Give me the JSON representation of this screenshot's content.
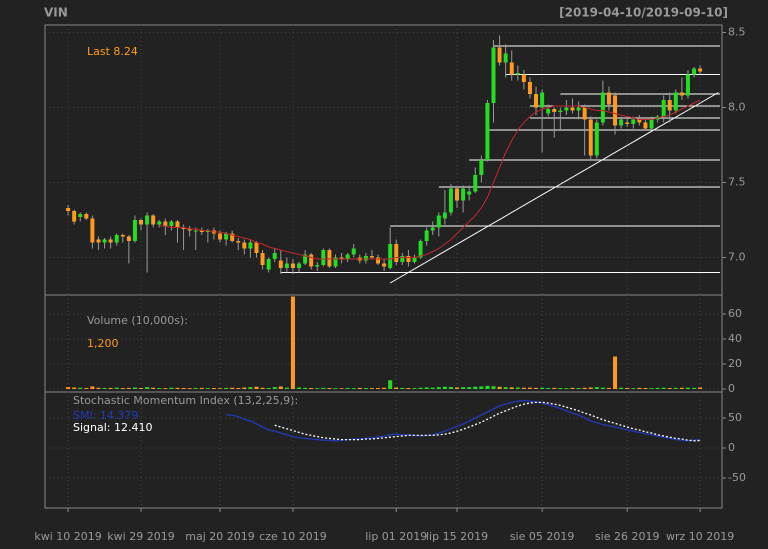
{
  "chart_data": {
    "type": "candlestick",
    "title": "VIN",
    "subtitle": "[2019-04-10/2019-09-10]",
    "last_label": "Last 8.24",
    "colors": {
      "up": "#22dd22",
      "down": "#ff9a1f",
      "wick": "#999999"
    },
    "ohlc": [
      [
        7.33,
        7.35,
        7.28,
        7.31
      ],
      [
        7.31,
        7.32,
        7.22,
        7.24
      ],
      [
        7.27,
        7.3,
        7.24,
        7.29
      ],
      [
        7.29,
        7.3,
        7.25,
        7.26
      ],
      [
        7.26,
        7.28,
        7.06,
        7.1
      ],
      [
        7.12,
        7.14,
        7.05,
        7.1
      ],
      [
        7.1,
        7.13,
        7.06,
        7.12
      ],
      [
        7.12,
        7.14,
        7.06,
        7.1
      ],
      [
        7.1,
        7.16,
        7.08,
        7.15
      ],
      [
        7.15,
        7.16,
        7.1,
        7.14
      ],
      [
        7.14,
        7.15,
        6.96,
        7.11
      ],
      [
        7.11,
        7.28,
        7.1,
        7.25
      ],
      [
        7.25,
        7.26,
        7.18,
        7.22
      ],
      [
        7.22,
        7.3,
        6.9,
        7.28
      ],
      [
        7.28,
        7.29,
        7.2,
        7.22
      ],
      [
        7.22,
        7.25,
        7.2,
        7.24
      ],
      [
        7.24,
        7.26,
        7.15,
        7.21
      ],
      [
        7.21,
        7.25,
        7.18,
        7.24
      ],
      [
        7.24,
        7.25,
        7.1,
        7.2
      ],
      [
        7.2,
        7.22,
        7.05,
        7.19
      ],
      [
        7.19,
        7.21,
        7.14,
        7.18
      ],
      [
        7.18,
        7.2,
        7.05,
        7.18
      ],
      [
        7.18,
        7.2,
        7.15,
        7.17
      ],
      [
        7.17,
        7.19,
        7.1,
        7.18
      ],
      [
        7.18,
        7.2,
        7.12,
        7.16
      ],
      [
        7.16,
        7.18,
        7.1,
        7.12
      ],
      [
        7.12,
        7.17,
        7.08,
        7.16
      ],
      [
        7.16,
        7.18,
        7.1,
        7.11
      ],
      [
        7.11,
        7.13,
        7.05,
        7.1
      ],
      [
        7.1,
        7.12,
        7.02,
        7.06
      ],
      [
        7.06,
        7.12,
        7.0,
        7.1
      ],
      [
        7.1,
        7.11,
        7.0,
        7.03
      ],
      [
        7.03,
        7.05,
        6.92,
        6.95
      ],
      [
        6.92,
        7.0,
        6.9,
        6.99
      ],
      [
        6.99,
        7.06,
        6.97,
        7.03
      ],
      [
        6.98,
        7.05,
        6.89,
        6.93
      ],
      [
        6.93,
        7.0,
        6.9,
        6.96
      ],
      [
        6.96,
        6.99,
        6.89,
        6.93
      ],
      [
        6.93,
        6.97,
        6.9,
        6.96
      ],
      [
        6.96,
        7.05,
        6.95,
        7.02
      ],
      [
        7.02,
        7.03,
        6.92,
        6.94
      ],
      [
        6.94,
        6.97,
        6.91,
        6.95
      ],
      [
        6.95,
        7.06,
        6.94,
        7.05
      ],
      [
        7.05,
        7.06,
        6.93,
        6.94
      ],
      [
        6.94,
        7.02,
        6.93,
        7.0
      ],
      [
        7.0,
        7.03,
        6.96,
        6.99
      ],
      [
        6.99,
        7.03,
        6.97,
        7.02
      ],
      [
        7.02,
        7.09,
        7.0,
        7.06
      ],
      [
        7.0,
        7.02,
        6.96,
        6.98
      ],
      [
        6.98,
        7.03,
        6.96,
        7.01
      ],
      [
        7.01,
        7.05,
        6.99,
        7.0
      ],
      [
        7.0,
        7.02,
        6.95,
        6.96
      ],
      [
        6.96,
        6.99,
        6.91,
        6.94
      ],
      [
        6.93,
        7.2,
        6.92,
        7.09
      ],
      [
        7.09,
        7.12,
        6.95,
        6.97
      ],
      [
        6.97,
        7.03,
        6.95,
        7.01
      ],
      [
        7.01,
        7.05,
        6.94,
        6.97
      ],
      [
        6.97,
        7.02,
        6.96,
        7.0
      ],
      [
        7.0,
        7.12,
        6.99,
        7.11
      ],
      [
        7.11,
        7.2,
        7.08,
        7.18
      ],
      [
        7.18,
        7.24,
        7.15,
        7.2
      ],
      [
        7.2,
        7.3,
        7.14,
        7.28
      ],
      [
        7.26,
        7.45,
        7.22,
        7.3
      ],
      [
        7.3,
        7.49,
        7.28,
        7.46
      ],
      [
        7.46,
        7.47,
        7.33,
        7.38
      ],
      [
        7.38,
        7.48,
        7.3,
        7.46
      ],
      [
        7.42,
        7.48,
        7.38,
        7.44
      ],
      [
        7.44,
        7.6,
        7.43,
        7.55
      ],
      [
        7.55,
        7.68,
        7.5,
        7.65
      ],
      [
        7.65,
        8.05,
        7.64,
        8.03
      ],
      [
        8.03,
        8.45,
        7.9,
        8.4
      ],
      [
        8.4,
        8.48,
        8.28,
        8.3
      ],
      [
        8.3,
        8.42,
        8.2,
        8.36
      ],
      [
        8.3,
        8.38,
        8.18,
        8.22
      ],
      [
        8.22,
        8.28,
        8.18,
        8.23
      ],
      [
        8.22,
        8.25,
        8.12,
        8.17
      ],
      [
        8.17,
        8.2,
        8.06,
        8.09
      ],
      [
        8.09,
        8.14,
        7.95,
        8.0
      ],
      [
        8.0,
        8.12,
        7.7,
        8.1
      ],
      [
        7.96,
        8.02,
        7.94,
        7.99
      ],
      [
        7.99,
        8.0,
        7.8,
        7.97
      ],
      [
        7.97,
        8.0,
        7.85,
        7.98
      ],
      [
        7.98,
        8.05,
        7.95,
        8.0
      ],
      [
        8.0,
        8.06,
        7.96,
        7.98
      ],
      [
        7.98,
        8.04,
        7.92,
        8.0
      ],
      [
        8.0,
        8.02,
        7.68,
        7.92
      ],
      [
        7.92,
        7.94,
        7.65,
        7.68
      ],
      [
        7.68,
        7.92,
        7.66,
        7.9
      ],
      [
        7.9,
        8.18,
        7.88,
        8.1
      ],
      [
        8.1,
        8.14,
        7.98,
        8.02
      ],
      [
        8.08,
        8.1,
        7.82,
        7.88
      ],
      [
        7.88,
        7.94,
        7.86,
        7.92
      ],
      [
        7.9,
        7.93,
        7.87,
        7.89
      ],
      [
        7.89,
        7.94,
        7.86,
        7.92
      ],
      [
        7.92,
        7.95,
        7.88,
        7.9
      ],
      [
        7.9,
        7.92,
        7.85,
        7.86
      ],
      [
        7.86,
        7.94,
        7.85,
        7.92
      ],
      [
        7.92,
        7.95,
        7.9,
        7.94
      ],
      [
        7.94,
        8.08,
        7.9,
        8.05
      ],
      [
        8.05,
        8.1,
        7.9,
        7.98
      ],
      [
        7.98,
        8.12,
        7.96,
        8.1
      ],
      [
        8.1,
        8.2,
        8.05,
        8.08
      ],
      [
        8.08,
        8.25,
        8.06,
        8.22
      ],
      [
        8.22,
        8.27,
        8.2,
        8.26
      ],
      [
        8.26,
        8.28,
        8.22,
        8.24
      ]
    ],
    "ma": {
      "color": "#c0282d",
      "values": [
        null,
        null,
        null,
        null,
        null,
        null,
        null,
        null,
        null,
        null,
        null,
        null,
        null,
        null,
        null,
        7.21,
        7.21,
        7.2,
        7.2,
        7.2,
        7.19,
        7.19,
        7.18,
        7.18,
        7.17,
        7.17,
        7.16,
        7.15,
        7.14,
        7.13,
        7.12,
        7.1,
        7.09,
        7.07,
        7.06,
        7.05,
        7.04,
        7.03,
        7.02,
        7.01,
        7.0,
        6.99,
        6.99,
        6.99,
        6.99,
        6.99,
        6.99,
        6.99,
        6.99,
        6.99,
        6.99,
        6.99,
        6.99,
        6.99,
        7.0,
        7.0,
        7.0,
        7.0,
        7.01,
        7.02,
        7.04,
        7.06,
        7.09,
        7.12,
        7.16,
        7.2,
        7.24,
        7.28,
        7.33,
        7.4,
        7.5,
        7.6,
        7.7,
        7.78,
        7.85,
        7.9,
        7.94,
        7.97,
        7.99,
        8.0,
        8.01,
        8.01,
        8.01,
        8.01,
        8.01,
        8.0,
        7.99,
        7.98,
        7.98,
        7.97,
        7.96,
        7.95,
        7.94,
        7.93,
        7.92,
        7.92,
        7.92,
        7.93,
        7.94,
        7.95,
        7.97,
        7.99,
        8.01,
        8.03,
        8.05
      ]
    },
    "hlines": [
      {
        "value": 8.41,
        "start": 70
      },
      {
        "value": 8.22,
        "start": 72
      },
      {
        "value": 8.09,
        "start": 81
      },
      {
        "value": 8.01,
        "start": 76
      },
      {
        "value": 7.93,
        "start": 76
      },
      {
        "value": 7.85,
        "start": 69
      },
      {
        "value": 7.65,
        "start": 66
      },
      {
        "value": 7.47,
        "start": 61
      },
      {
        "value": 7.21,
        "start": 53
      },
      {
        "value": 6.9,
        "start": 35
      }
    ],
    "trendline": {
      "x": [
        53,
        107
      ],
      "y": [
        6.83,
        8.1
      ]
    },
    "line_color": "#ffffff",
    "xlim": [
      -3.8,
      107.6
    ],
    "xticks": [
      {
        "value": 0,
        "label": "kwi 10 2019"
      },
      {
        "value": 12,
        "label": "kwi 29 2019"
      },
      {
        "value": 25,
        "label": "maj 20 2019"
      },
      {
        "value": 37,
        "label": "cze 10 2019"
      },
      {
        "value": 54,
        "label": "lip 01 2019"
      },
      {
        "value": 64,
        "label": "lip 15 2019"
      },
      {
        "value": 78,
        "label": "sie 05 2019"
      },
      {
        "value": 92,
        "label": "sie 26 2019"
      },
      {
        "value": 104,
        "label": "wrz 10 2019"
      }
    ],
    "ylim": [
      6.75,
      8.55
    ],
    "yticks": [
      {
        "value": 7,
        "label": "7.0"
      },
      7.5,
      {
        "value": 8,
        "label": "8.0"
      },
      8.5
    ],
    "grid": true,
    "volume": {
      "title": "Volume (10,000s):",
      "last": "1,200",
      "values": [
        1.5,
        1.2,
        1.0,
        0.8,
        2.0,
        1.0,
        0.8,
        0.9,
        1.1,
        0.7,
        0.9,
        1.2,
        0.8,
        1.5,
        1.0,
        0.8,
        0.7,
        1.0,
        0.9,
        0.8,
        0.7,
        0.8,
        0.9,
        0.7,
        0.8,
        0.6,
        0.9,
        1.0,
        0.8,
        1.2,
        1.5,
        1.8,
        1.0,
        0.8,
        1.5,
        2.0,
        1.0,
        74,
        1.2,
        0.9,
        0.8,
        0.7,
        0.9,
        0.8,
        0.7,
        0.6,
        0.8,
        0.7,
        0.9,
        0.8,
        0.7,
        0.8,
        1.0,
        7,
        1.2,
        0.9,
        0.8,
        0.7,
        1.0,
        1.3,
        1.1,
        1.5,
        1.8,
        1.6,
        1.2,
        1.4,
        1.5,
        1.8,
        2.0,
        2.5,
        2.2,
        1.8,
        1.5,
        1.3,
        1.2,
        1.0,
        1.1,
        0.9,
        1.0,
        0.8,
        0.9,
        0.8,
        0.7,
        0.9,
        0.8,
        1.0,
        1.2,
        1.5,
        1.1,
        0.9,
        26,
        1.0,
        0.8,
        0.7,
        0.9,
        0.8,
        0.7,
        0.9,
        1.0,
        0.8,
        0.9,
        1.0,
        1.1,
        0.9,
        1.2
      ],
      "ylim": [
        -2.4,
        75.2
      ],
      "yticks": [
        0,
        20,
        40,
        60
      ]
    },
    "smi": {
      "title": "Stochastic Momentum Index (13,2,25,9):",
      "series": [
        {
          "name": "SMI: 14.379",
          "color": "#2238b8",
          "dash": false,
          "values": [
            null,
            null,
            null,
            null,
            null,
            null,
            null,
            null,
            null,
            null,
            null,
            null,
            null,
            null,
            null,
            null,
            null,
            null,
            null,
            null,
            null,
            null,
            null,
            null,
            null,
            null,
            55,
            55,
            52,
            48,
            45,
            40,
            35,
            30,
            28,
            25,
            22,
            19,
            17,
            16,
            15,
            14,
            13,
            13,
            12,
            13,
            14,
            15,
            15,
            16,
            17,
            18,
            20,
            22,
            23,
            22,
            22,
            21,
            20,
            21,
            22,
            25,
            28,
            32,
            36,
            40,
            45,
            50,
            55,
            60,
            65,
            70,
            73,
            76,
            78,
            79,
            78,
            77,
            75,
            72,
            69,
            66,
            62,
            58,
            55,
            50,
            45,
            42,
            39,
            37,
            35,
            33,
            30,
            28,
            26,
            24,
            22,
            20,
            18,
            16,
            14,
            13,
            12,
            13,
            14.379
          ]
        },
        {
          "name": "Signal: 12.410",
          "color": "#ffffff",
          "dash": true,
          "values": [
            null,
            null,
            null,
            null,
            null,
            null,
            null,
            null,
            null,
            null,
            null,
            null,
            null,
            null,
            null,
            null,
            null,
            null,
            null,
            null,
            null,
            null,
            null,
            null,
            null,
            null,
            null,
            null,
            null,
            null,
            null,
            null,
            null,
            null,
            38,
            35,
            32,
            29,
            26,
            23,
            21,
            19,
            17,
            16,
            15,
            14,
            14,
            14,
            14,
            15,
            15,
            16,
            17,
            18,
            19,
            20,
            21,
            21,
            21,
            21,
            21,
            22,
            23,
            25,
            28,
            31,
            35,
            39,
            43,
            48,
            53,
            58,
            62,
            66,
            70,
            73,
            75,
            76,
            76,
            75,
            73,
            71,
            68,
            65,
            62,
            58,
            55,
            51,
            47,
            44,
            41,
            38,
            35,
            32,
            30,
            27,
            25,
            22,
            20,
            18,
            16,
            15,
            13,
            12,
            12.41
          ]
        }
      ],
      "ylim": [
        -100,
        93.3
      ],
      "yticks": [
        -50,
        0,
        50
      ]
    }
  }
}
